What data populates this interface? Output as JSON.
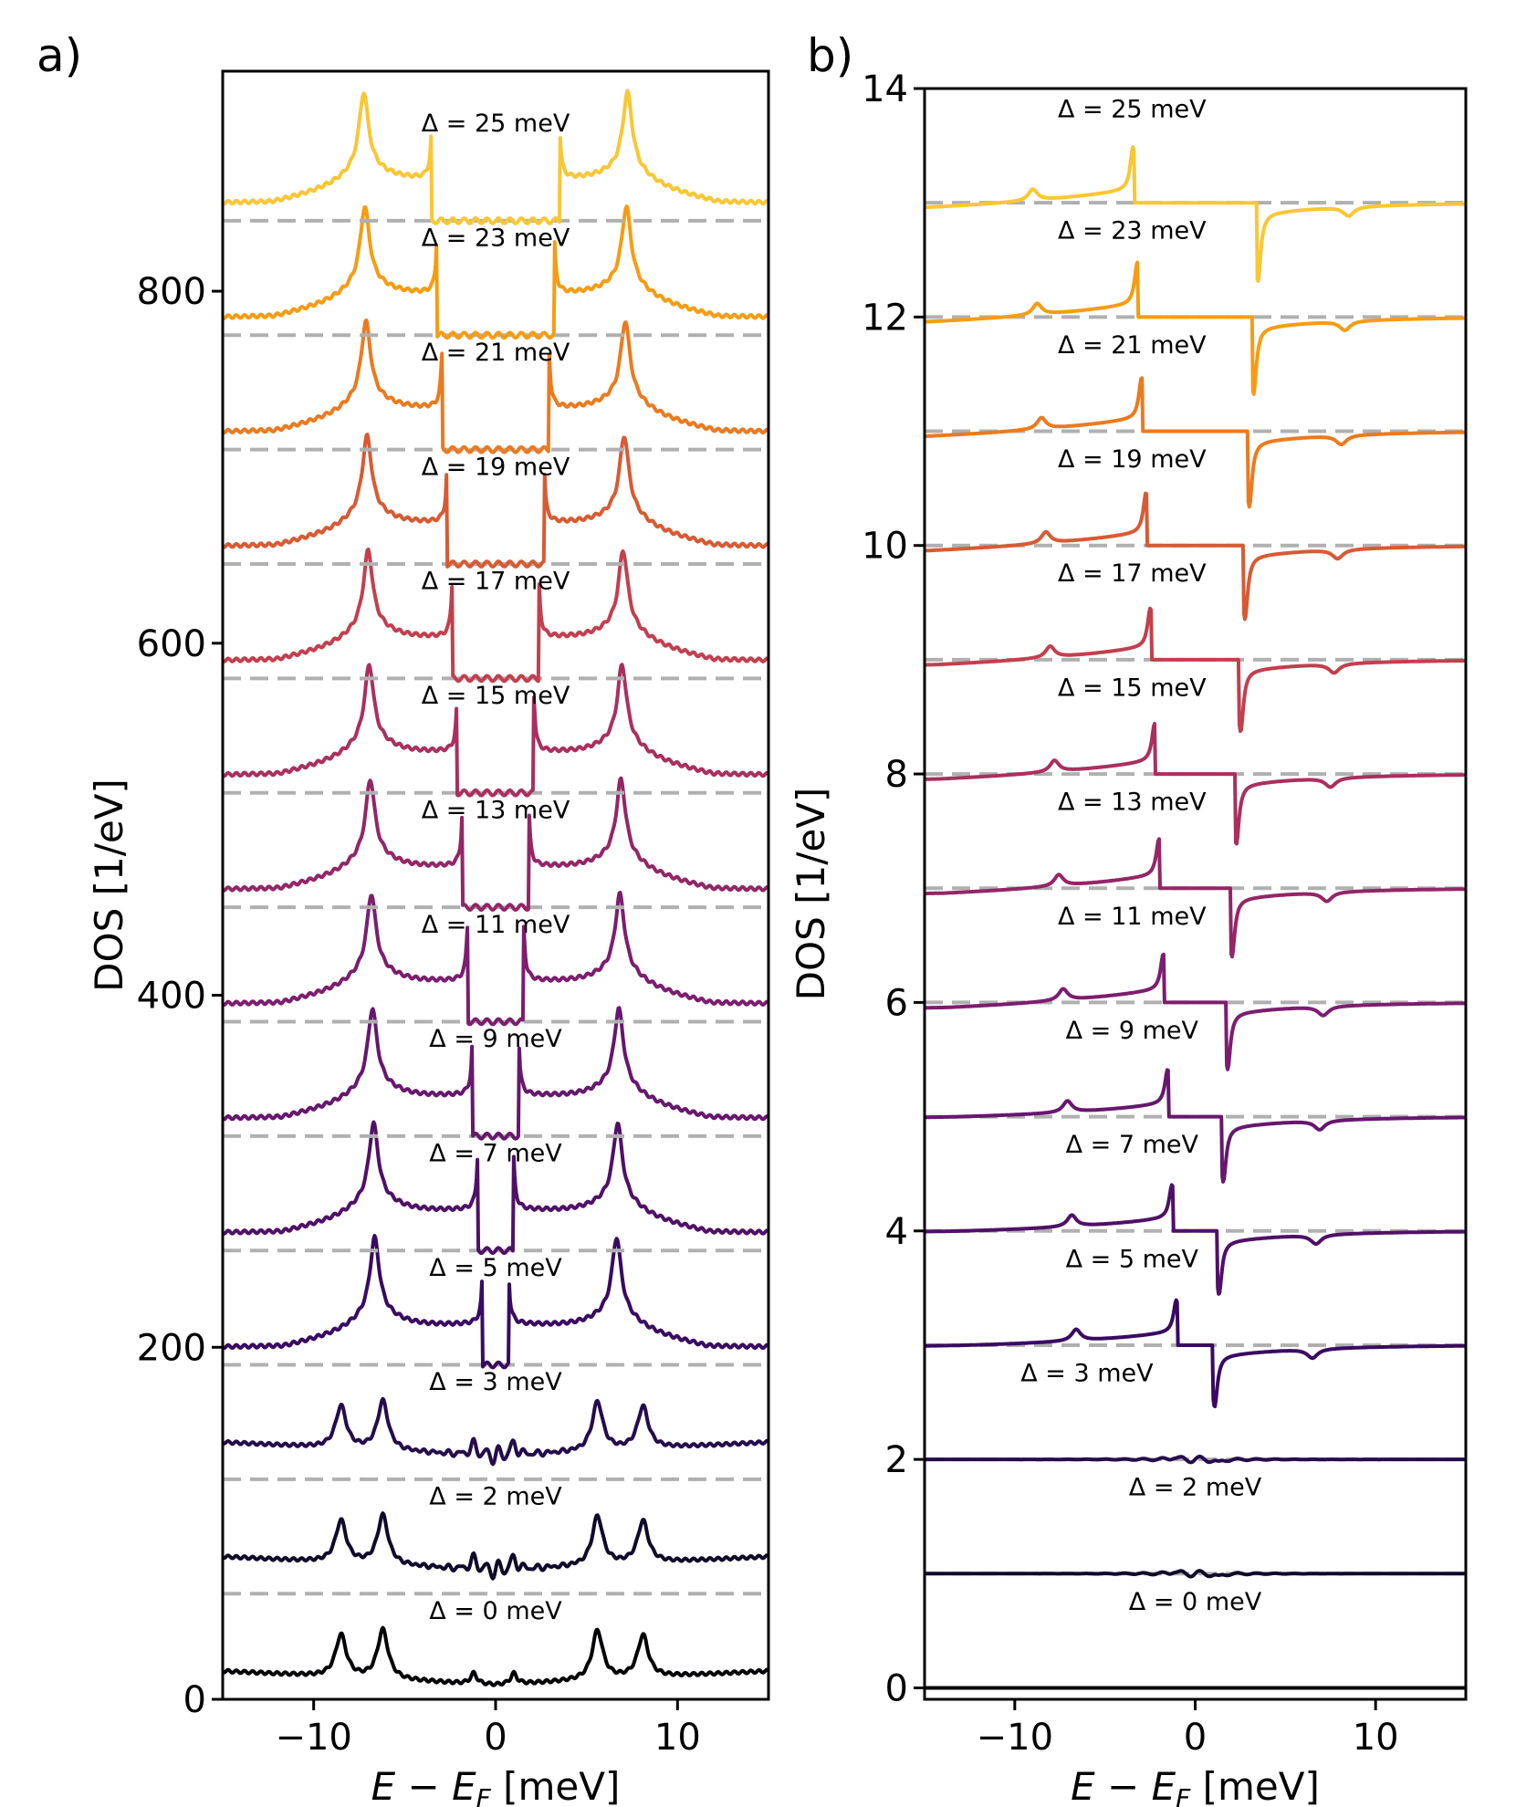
{
  "panels": {
    "a": {
      "label": "a)"
    },
    "b": {
      "label": "b)"
    }
  },
  "chart_data": [
    {
      "id": "a",
      "type": "line",
      "title": "",
      "xlabel": "E − E_F [meV]",
      "ylabel": "DOS [1/eV]",
      "xlim": [
        -15,
        15
      ],
      "ylim": [
        0,
        925
      ],
      "xticks": [
        -10,
        0,
        10
      ],
      "yticks": [
        0,
        200,
        400,
        600,
        800
      ],
      "grid": false,
      "series": [
        {
          "name": "Δ = 0 meV",
          "delta": 0,
          "offset": 0,
          "color": "#000004"
        },
        {
          "name": "Δ = 2 meV",
          "delta": 2,
          "offset": 65,
          "color": "#0f0a29"
        },
        {
          "name": "Δ = 3 meV",
          "delta": 3,
          "offset": 130,
          "color": "#250c4d"
        },
        {
          "name": "Δ = 5 meV",
          "delta": 5,
          "offset": 195,
          "color": "#3a0a62"
        },
        {
          "name": "Δ = 7 meV",
          "delta": 7,
          "offset": 260,
          "color": "#501067"
        },
        {
          "name": "Δ = 9 meV",
          "delta": 9,
          "offset": 325,
          "color": "#66176e"
        },
        {
          "name": "Δ = 11 meV",
          "delta": 11,
          "offset": 390,
          "color": "#7c1d6f"
        },
        {
          "name": "Δ = 13 meV",
          "delta": 13,
          "offset": 455,
          "color": "#932667"
        },
        {
          "name": "Δ = 15 meV",
          "delta": 15,
          "offset": 520,
          "color": "#aa2f5d"
        },
        {
          "name": "Δ = 17 meV",
          "delta": 17,
          "offset": 585,
          "color": "#c23f4e"
        },
        {
          "name": "Δ = 19 meV",
          "delta": 19,
          "offset": 650,
          "color": "#d85a32"
        },
        {
          "name": "Δ = 21 meV",
          "delta": 21,
          "offset": 715,
          "color": "#eb7a1e"
        },
        {
          "name": "Δ = 23 meV",
          "delta": 23,
          "offset": 780,
          "color": "#f69c12"
        },
        {
          "name": "Δ = 25 meV",
          "delta": 25,
          "offset": 845,
          "color": "#f9c634"
        }
      ]
    },
    {
      "id": "b",
      "type": "line",
      "title": "",
      "xlabel": "E − E_F [meV]",
      "ylabel": "DOS [1/eV]",
      "xlim": [
        -15,
        15
      ],
      "ylim": [
        -0.1,
        14
      ],
      "xticks": [
        -10,
        0,
        10
      ],
      "yticks": [
        0,
        2,
        4,
        6,
        8,
        10,
        12,
        14
      ],
      "grid": false,
      "series": [
        {
          "name": "Δ = 0 meV",
          "delta": 0,
          "offset": 0,
          "color": "#000004"
        },
        {
          "name": "Δ = 2 meV",
          "delta": 2,
          "offset": 1,
          "color": "#0f0a29"
        },
        {
          "name": "Δ = 3 meV",
          "delta": 3,
          "offset": 2,
          "color": "#250c4d"
        },
        {
          "name": "Δ = 5 meV",
          "delta": 5,
          "offset": 3,
          "color": "#3a0a62"
        },
        {
          "name": "Δ = 7 meV",
          "delta": 7,
          "offset": 4,
          "color": "#501067"
        },
        {
          "name": "Δ = 9 meV",
          "delta": 9,
          "offset": 5,
          "color": "#66176e"
        },
        {
          "name": "Δ = 11 meV",
          "delta": 11,
          "offset": 6,
          "color": "#7c1d6f"
        },
        {
          "name": "Δ = 13 meV",
          "delta": 13,
          "offset": 7,
          "color": "#932667"
        },
        {
          "name": "Δ = 15 meV",
          "delta": 15,
          "offset": 8,
          "color": "#aa2f5d"
        },
        {
          "name": "Δ = 17 meV",
          "delta": 17,
          "offset": 9,
          "color": "#c23f4e"
        },
        {
          "name": "Δ = 19 meV",
          "delta": 19,
          "offset": 10,
          "color": "#d85a32"
        },
        {
          "name": "Δ = 21 meV",
          "delta": 21,
          "offset": 11,
          "color": "#eb7a1e"
        },
        {
          "name": "Δ = 23 meV",
          "delta": 23,
          "offset": 12,
          "color": "#f69c12"
        },
        {
          "name": "Δ = 25 meV",
          "delta": 25,
          "offset": 13,
          "color": "#f9c634"
        }
      ]
    }
  ]
}
